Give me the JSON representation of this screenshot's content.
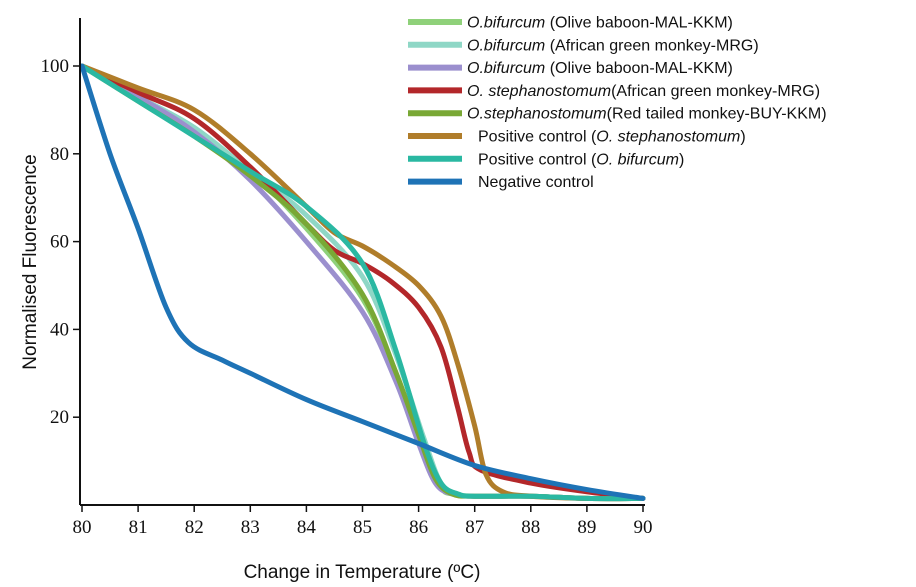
{
  "chart_data": {
    "type": "line",
    "title": "",
    "xlabel": "Change in Temperature (ºC)",
    "ylabel": "Normalised Fluorescence",
    "xlim": [
      80,
      90
    ],
    "ylim": [
      0,
      110
    ],
    "x_ticks": [
      "80",
      "81",
      "82",
      "83",
      "84",
      "85",
      "86",
      "87",
      "88",
      "89",
      "90"
    ],
    "y_ticks": [
      "20",
      "40",
      "60",
      "80",
      "100"
    ],
    "grid": false,
    "legend_position": "top-right",
    "series": [
      {
        "name_parts": [
          {
            "text": "O.bifurcum",
            "italic": true
          },
          {
            "text": " (Olive baboon-MAL-KKM)",
            "italic": false
          }
        ],
        "color": "#8fd17a",
        "points": [
          [
            80,
            100
          ],
          [
            81,
            93
          ],
          [
            82,
            85
          ],
          [
            83,
            76
          ],
          [
            84,
            63
          ],
          [
            85,
            47
          ],
          [
            85.6,
            30
          ],
          [
            86.1,
            12
          ],
          [
            86.4,
            4
          ],
          [
            86.6,
            2.5
          ],
          [
            87,
            2
          ],
          [
            88,
            2
          ],
          [
            89,
            1.5
          ],
          [
            90,
            1.5
          ]
        ]
      },
      {
        "name_parts": [
          {
            "text": "O.bifurcum",
            "italic": true
          },
          {
            "text": " (African green monkey-MRG)",
            "italic": false
          }
        ],
        "color": "#8fd7c6",
        "points": [
          [
            80,
            100
          ],
          [
            81,
            93
          ],
          [
            82,
            86
          ],
          [
            83,
            76
          ],
          [
            84,
            66
          ],
          [
            85,
            52
          ],
          [
            85.6,
            34
          ],
          [
            86.1,
            15
          ],
          [
            86.4,
            5
          ],
          [
            86.7,
            2.5
          ],
          [
            87,
            2
          ],
          [
            88,
            2
          ],
          [
            89,
            1.5
          ],
          [
            90,
            1.5
          ]
        ]
      },
      {
        "name_parts": [
          {
            "text": "O.bifurcum",
            "italic": true
          },
          {
            "text": " (Olive baboon-MAL-KKM)",
            "italic": false
          }
        ],
        "color": "#9b8fce",
        "points": [
          [
            80,
            100
          ],
          [
            81,
            93
          ],
          [
            82,
            85
          ],
          [
            83,
            74
          ],
          [
            84,
            60
          ],
          [
            85,
            44
          ],
          [
            85.6,
            28
          ],
          [
            86,
            14
          ],
          [
            86.3,
            5
          ],
          [
            86.6,
            2.5
          ],
          [
            87,
            2
          ],
          [
            88,
            2
          ],
          [
            89,
            1.5
          ],
          [
            90,
            1.5
          ]
        ]
      },
      {
        "name_parts": [
          {
            "text": "O. stephanostomum",
            "italic": true
          },
          {
            "text": "(African green monkey-MRG)",
            "italic": false
          }
        ],
        "color": "#b3272a",
        "points": [
          [
            80,
            100
          ],
          [
            81,
            94
          ],
          [
            82,
            88
          ],
          [
            83,
            77
          ],
          [
            84,
            64
          ],
          [
            84.5,
            58
          ],
          [
            85,
            55
          ],
          [
            85.5,
            51
          ],
          [
            86,
            45
          ],
          [
            86.4,
            36
          ],
          [
            86.7,
            22
          ],
          [
            86.9,
            12
          ],
          [
            87.1,
            8
          ],
          [
            88,
            5
          ],
          [
            89,
            3
          ],
          [
            90,
            1.5
          ]
        ]
      },
      {
        "name_parts": [
          {
            "text": "O.stephanostomum",
            "italic": true
          },
          {
            "text": "(Red tailed monkey-BUY-KKM)",
            "italic": false
          }
        ],
        "color": "#79a835",
        "points": [
          [
            80,
            100
          ],
          [
            81,
            92
          ],
          [
            82,
            84
          ],
          [
            83,
            75
          ],
          [
            84,
            64
          ],
          [
            85,
            48
          ],
          [
            85.6,
            30
          ],
          [
            86,
            16
          ],
          [
            86.3,
            6
          ],
          [
            86.6,
            2.5
          ],
          [
            87,
            2
          ],
          [
            88,
            2
          ],
          [
            89,
            1.5
          ],
          [
            90,
            1.5
          ]
        ]
      },
      {
        "name_parts": [
          {
            "text": "Positive control (",
            "italic": false
          },
          {
            "text": "O. stephanostomum",
            "italic": true
          },
          {
            "text": ")",
            "italic": false
          }
        ],
        "color": "#b07d2a",
        "points": [
          [
            80,
            100
          ],
          [
            81,
            95
          ],
          [
            82,
            90
          ],
          [
            83,
            80
          ],
          [
            84,
            68
          ],
          [
            84.5,
            62
          ],
          [
            85,
            59
          ],
          [
            85.5,
            55
          ],
          [
            86,
            50
          ],
          [
            86.4,
            43
          ],
          [
            86.7,
            32
          ],
          [
            87,
            18
          ],
          [
            87.2,
            7
          ],
          [
            87.5,
            3
          ],
          [
            88,
            2
          ],
          [
            89,
            1.5
          ],
          [
            90,
            1.5
          ]
        ]
      },
      {
        "name_parts": [
          {
            "text": "Positive control (",
            "italic": false
          },
          {
            "text": "O. bifurcum",
            "italic": true
          },
          {
            "text": ")",
            "italic": false
          }
        ],
        "color": "#2ab8a2",
        "points": [
          [
            80,
            100
          ],
          [
            81,
            92
          ],
          [
            82,
            84
          ],
          [
            83,
            76
          ],
          [
            84,
            68
          ],
          [
            85,
            55
          ],
          [
            85.6,
            35
          ],
          [
            86.1,
            14
          ],
          [
            86.4,
            5
          ],
          [
            86.7,
            2.5
          ],
          [
            87,
            2
          ],
          [
            88,
            2
          ],
          [
            89,
            1.5
          ],
          [
            90,
            1.5
          ]
        ]
      },
      {
        "name_parts": [
          {
            "text": "Negative control",
            "italic": false
          }
        ],
        "color": "#1e73b6",
        "points": [
          [
            80,
            100
          ],
          [
            80.5,
            80
          ],
          [
            81,
            63
          ],
          [
            81.5,
            45
          ],
          [
            81.9,
            37
          ],
          [
            82.5,
            33
          ],
          [
            83,
            30
          ],
          [
            84,
            24
          ],
          [
            85,
            19
          ],
          [
            86,
            14
          ],
          [
            87,
            9
          ],
          [
            88,
            6
          ],
          [
            89,
            3.5
          ],
          [
            90,
            1.5
          ]
        ]
      }
    ]
  }
}
